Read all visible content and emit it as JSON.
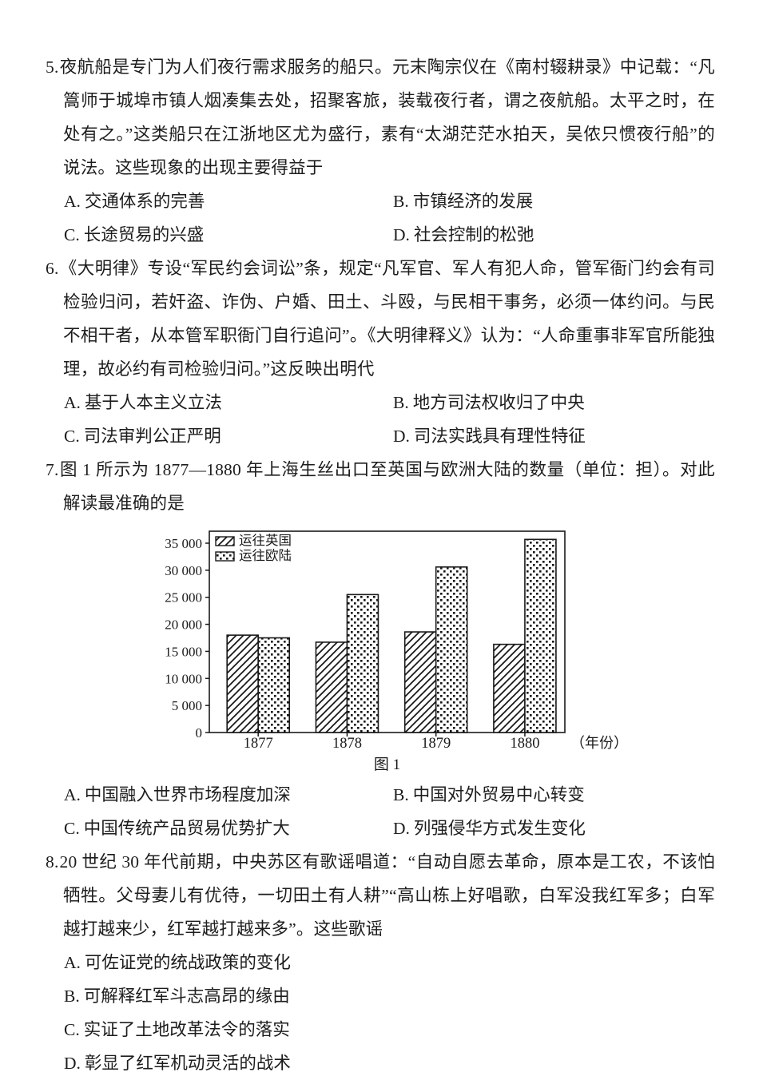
{
  "page": {
    "background": "#ffffff",
    "text_color": "#1d1d1d",
    "line_color": "#1a1a1a"
  },
  "questions": [
    {
      "number": "5.",
      "stem": "夜航船是专门为人们夜行需求服务的船只。元末陶宗仪在《南村辍耕录》中记载：“凡篙师于城埠市镇人烟凑集去处，招聚客旅，装载夜行者，谓之夜航船。太平之时，在处有之。”这类船只在江浙地区尤为盛行，素有“太湖茫茫水拍天，吴侬只惯夜行船”的说法。这些现象的出现主要得益于",
      "options": [
        {
          "key": "A.",
          "text": "交通体系的完善"
        },
        {
          "key": "B.",
          "text": "市镇经济的发展"
        },
        {
          "key": "C.",
          "text": "长途贸易的兴盛"
        },
        {
          "key": "D.",
          "text": "社会控制的松弛"
        }
      ]
    },
    {
      "number": "6.",
      "stem": "《大明律》专设“军民约会词讼”条，规定“凡军官、军人有犯人命，管军衙门约会有司检验归问，若奸盗、诈伪、户婚、田土、斗殴，与民相干事务，必须一体约问。与民不相干者，从本管军职衙门自行追问”。《大明律释义》认为：“人命重事非军官所能独理，故必约有司检验归问。”这反映出明代",
      "options": [
        {
          "key": "A.",
          "text": "基于人本主义立法"
        },
        {
          "key": "B.",
          "text": "地方司法权收归了中央"
        },
        {
          "key": "C.",
          "text": "司法审判公正严明"
        },
        {
          "key": "D.",
          "text": "司法实践具有理性特征"
        }
      ]
    },
    {
      "number": "7.",
      "stem": "图 1 所示为 1877—1880 年上海生丝出口至英国与欧洲大陆的数量（单位：担）。对此解读最准确的是",
      "options": [
        {
          "key": "A.",
          "text": "中国融入世界市场程度加深"
        },
        {
          "key": "B.",
          "text": "中国对外贸易中心转变"
        },
        {
          "key": "C.",
          "text": "中国传统产品贸易优势扩大"
        },
        {
          "key": "D.",
          "text": "列强侵华方式发生变化"
        }
      ]
    },
    {
      "number": "8.",
      "stem": "20 世纪 30 年代前期，中央苏区有歌谣唱道：“自动自愿去革命，原本是工农，不该怕牺牲。父母妻儿有优待，一切田土有人耕”“高山栋上好唱歌，白军没我红军多；白军越打越来少，红军越打越来多”。这些歌谣",
      "options": [
        {
          "key": "A.",
          "text": "可佐证党的统战政策的变化"
        },
        {
          "key": "B.",
          "text": "可解释红军斗志高昂的缘由"
        },
        {
          "key": "C.",
          "text": "实证了土地改革法令的落实"
        },
        {
          "key": "D.",
          "text": "彰显了红军机动灵活的战术"
        }
      ]
    }
  ],
  "chart_data": {
    "type": "bar",
    "title": "图 1",
    "categories": [
      "1877",
      "1878",
      "1879",
      "1880"
    ],
    "series": [
      {
        "name": "运往英国",
        "pattern": "hatch",
        "values": [
          18000,
          16700,
          18600,
          16300
        ]
      },
      {
        "name": "运往欧陆",
        "pattern": "dots",
        "values": [
          17500,
          25500,
          30600,
          35700
        ]
      }
    ],
    "ylim": [
      0,
      37000
    ],
    "yticks": [
      0,
      5000,
      10000,
      15000,
      20000,
      25000,
      30000,
      35000
    ],
    "ytick_labels": [
      "0",
      "5 000",
      "10 000",
      "15 000",
      "20 000",
      "25 000",
      "30 000",
      "35 000"
    ],
    "xlabel_suffix": "（年份）",
    "legend_position": "top-left",
    "grid": false
  }
}
